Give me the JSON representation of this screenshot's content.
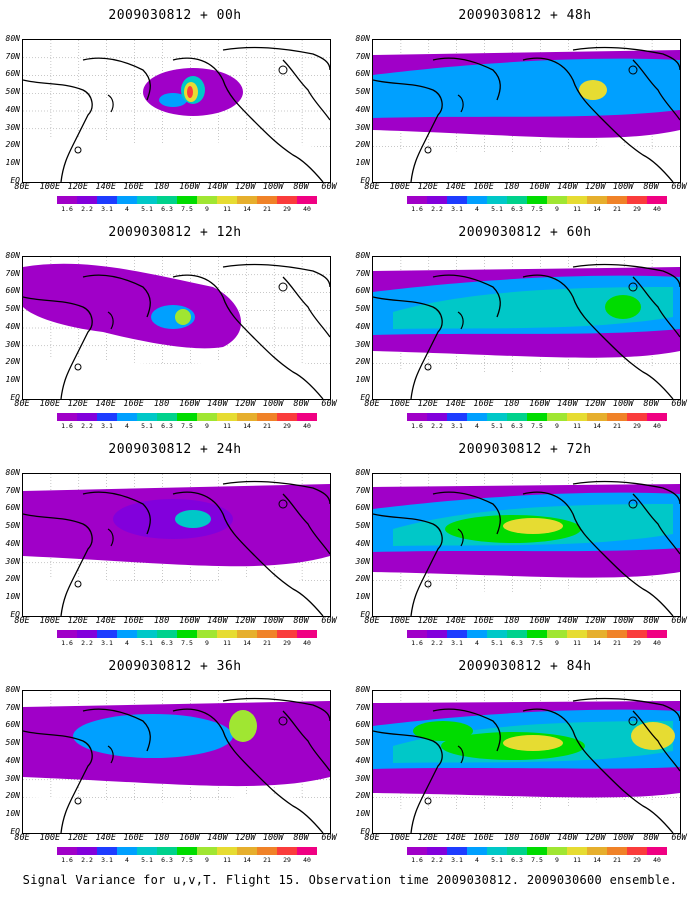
{
  "figure": {
    "caption": "Signal Variance for u,v,T. Flight 15. Observation time 2009030812. 2009030600 ensemble."
  },
  "axes": {
    "lat_labels": [
      "80N",
      "70N",
      "60N",
      "50N",
      "40N",
      "30N",
      "20N",
      "10N",
      "EQ"
    ],
    "lon_labels": [
      "80E",
      "100E",
      "120E",
      "140E",
      "160E",
      "180",
      "160W",
      "140W",
      "120W",
      "100W",
      "80W",
      "60W"
    ]
  },
  "colorbar": {
    "levels": [
      "1.6",
      "2.2",
      "3.1",
      "4",
      "5.1",
      "6.3",
      "7.5",
      "9",
      "11",
      "14",
      "21",
      "29",
      "40"
    ],
    "colors": [
      "#a000c8",
      "#8200dc",
      "#1e3cff",
      "#00a0ff",
      "#00c8c8",
      "#00d28c",
      "#00dc00",
      "#a0e632",
      "#e6dc32",
      "#e6af2d",
      "#f08228",
      "#fa3c3c",
      "#f00082"
    ]
  },
  "panels": [
    {
      "title": "2009030812 + 00h",
      "level": 1
    },
    {
      "title": "2009030812 + 48h",
      "level": 5
    },
    {
      "title": "2009030812 + 12h",
      "level": 2
    },
    {
      "title": "2009030812 + 60h",
      "level": 6
    },
    {
      "title": "2009030812 + 24h",
      "level": 3
    },
    {
      "title": "2009030812 + 72h",
      "level": 7
    },
    {
      "title": "2009030812 + 36h",
      "level": 4
    },
    {
      "title": "2009030812 + 84h",
      "level": 8
    }
  ]
}
